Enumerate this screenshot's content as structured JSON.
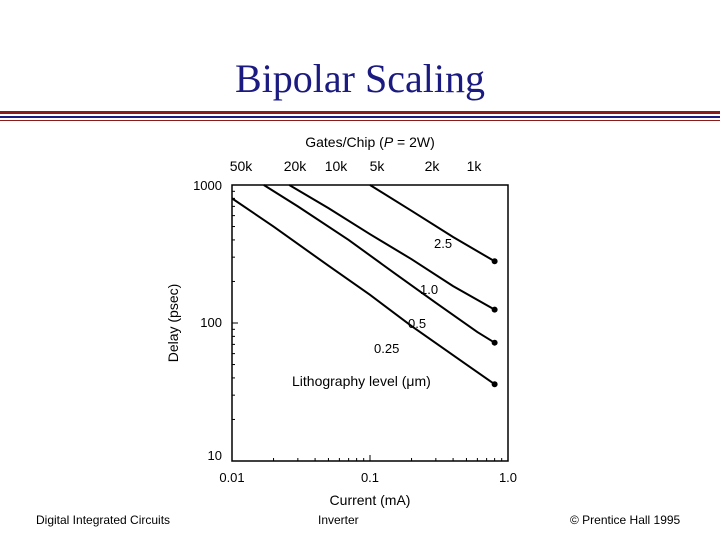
{
  "slide": {
    "title": "Bipolar Scaling",
    "accent_color": "#1a1a80",
    "rule_colors": [
      "#8b1a1a",
      "#1a1a80"
    ]
  },
  "footer": {
    "left": "Digital Integrated Circuits",
    "center": "Inverter",
    "right": "© Prentice Hall 1995"
  },
  "chart_data": {
    "type": "line",
    "title": "",
    "xlabel": "Current (mA)",
    "ylabel": "Delay (psec)",
    "xscale": "log",
    "yscale": "log",
    "xlim": [
      0.01,
      1.0
    ],
    "ylim": [
      10,
      1000
    ],
    "x_ticks": [
      {
        "value": 0.01,
        "label": "0.01"
      },
      {
        "value": 0.1,
        "label": "0.1"
      },
      {
        "value": 1.0,
        "label": "1.0"
      }
    ],
    "y_ticks": [
      {
        "value": 10,
        "label": "10"
      },
      {
        "value": 100,
        "label": "100"
      },
      {
        "value": 1000,
        "label": "1000"
      }
    ],
    "top_axis": {
      "label": "Gates/Chip (P = 2W)",
      "ticks": [
        {
          "value": 0.01,
          "label": "50k"
        },
        {
          "value": 0.022,
          "label": "20k"
        },
        {
          "value": 0.04,
          "label": "10k"
        },
        {
          "value": 0.08,
          "label": "5k"
        },
        {
          "value": 0.2,
          "label": "2k"
        },
        {
          "value": 0.4,
          "label": "1k"
        }
      ]
    },
    "series": [
      {
        "name": "0.25",
        "points": [
          [
            0.01,
            800
          ],
          [
            0.02,
            500
          ],
          [
            0.05,
            260
          ],
          [
            0.1,
            160
          ],
          [
            0.2,
            95
          ],
          [
            0.5,
            50
          ],
          [
            0.8,
            36
          ]
        ]
      },
      {
        "name": "0.5",
        "points": [
          [
            0.017,
            1000
          ],
          [
            0.03,
            700
          ],
          [
            0.07,
            400
          ],
          [
            0.15,
            230
          ],
          [
            0.3,
            140
          ],
          [
            0.6,
            86
          ],
          [
            0.8,
            72
          ]
        ]
      },
      {
        "name": "1.0",
        "points": [
          [
            0.026,
            1000
          ],
          [
            0.05,
            680
          ],
          [
            0.1,
            440
          ],
          [
            0.2,
            290
          ],
          [
            0.4,
            185
          ],
          [
            0.8,
            125
          ]
        ]
      },
      {
        "name": "2.5",
        "points": [
          [
            0.1,
            1000
          ],
          [
            0.2,
            650
          ],
          [
            0.4,
            420
          ],
          [
            0.8,
            280
          ]
        ]
      }
    ],
    "annotations": {
      "series_labels": [
        "0.25",
        "0.5",
        "1.0",
        "2.5"
      ],
      "legend_text": "Lithography level (μm)"
    },
    "grid": false
  }
}
